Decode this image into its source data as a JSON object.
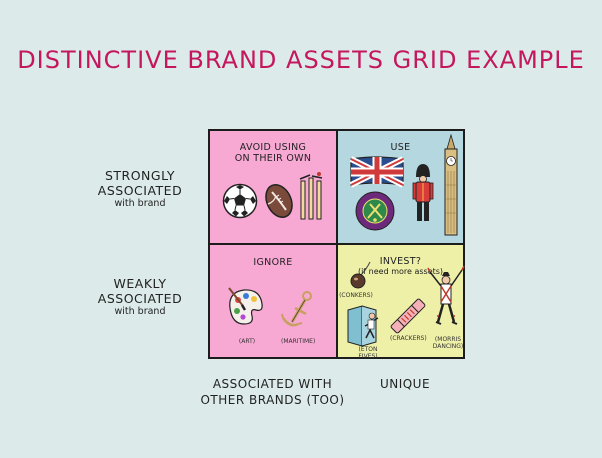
{
  "title": "DISTINCTIVE BRAND ASSETS GRID EXAMPLE",
  "rows": {
    "strong": {
      "line1": "STRONGLY",
      "line2": "ASSOCIATED",
      "sub": "with brand"
    },
    "weak": {
      "line1": "WEAKLY",
      "line2": "ASSOCIATED",
      "sub": "with brand"
    }
  },
  "columns": {
    "other": {
      "line1": "ASSOCIATED WITH",
      "line2": "OTHER BRANDS (TOO)"
    },
    "unique": {
      "label": "UNIQUE"
    }
  },
  "quadrants": {
    "avoid": {
      "line1": "AVOID USING",
      "line2": "ON THEIR OWN",
      "color": "#f7a8d3"
    },
    "use": {
      "label": "USE",
      "color": "#b5d7e0"
    },
    "ignore": {
      "label": "IGNORE",
      "color": "#f7a8d3",
      "captions": [
        "(ART)",
        "(MARITIME)"
      ]
    },
    "invest": {
      "label": "INVEST?",
      "sub": "(if need more assets)",
      "color": "#eef0a8",
      "captions": [
        "(CONKERS)",
        "(ETON FIVES)",
        "(CRACKERS)",
        "(MORRIS",
        "DANCING)"
      ]
    }
  },
  "icons": [
    "football-icon",
    "rugby-ball-icon",
    "cricket-wicket-icon",
    "union-jack-icon",
    "royal-guard-icon",
    "big-ben-icon",
    "wimbledon-badge-icon",
    "paint-palette-icon",
    "anchor-icon",
    "conker-icon",
    "eton-fives-icon",
    "cracker-icon",
    "morris-dancer-icon"
  ]
}
